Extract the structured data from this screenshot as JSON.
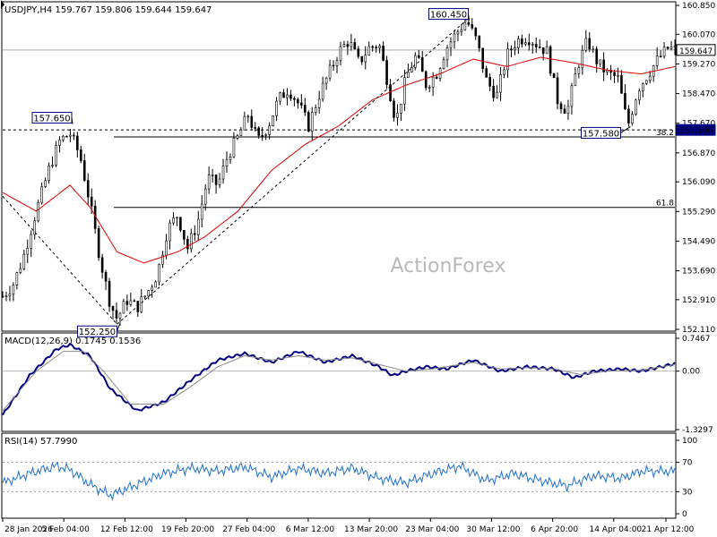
{
  "window": {
    "symbol_line": "USDJPY,H4  159.767 159.806 159.644 159.647"
  },
  "watermark": "ActionForex",
  "colors": {
    "candle": "#000000",
    "ma": "#e00000",
    "macd_main": "#000080",
    "macd_signal": "#8a8a8a",
    "rsi": "#1f6fd0",
    "grid": "#cccccc",
    "label_border": "#000080"
  },
  "chart_data": [
    {
      "type": "candlestick",
      "title": "USDJPY,H4",
      "ylim": [
        152.11,
        160.85
      ],
      "y_ticks": [
        "160.850",
        "160.070",
        "159.270",
        "158.470",
        "157.670",
        "156.870",
        "156.090",
        "155.290",
        "154.490",
        "153.690",
        "152.910",
        "152.110"
      ],
      "x_ticks": [
        "28 Jan 2026",
        "5 Feb 04:00",
        "12 Feb 12:00",
        "19 Feb 20:00",
        "27 Feb 04:00",
        "6 Mar 12:00",
        "13 Mar 20:00",
        "23 Mar 04:00",
        "30 Mar 12:00",
        "6 Apr 20:00",
        "14 Apr 04:00",
        "21 Apr 12:00"
      ],
      "path_points": [
        [
          0,
          153.0
        ],
        [
          0.015,
          153.3
        ],
        [
          0.03,
          154.0
        ],
        [
          0.05,
          155.3
        ],
        [
          0.07,
          156.5
        ],
        [
          0.085,
          157.2
        ],
        [
          0.1,
          157.4
        ],
        [
          0.115,
          156.8
        ],
        [
          0.13,
          155.5
        ],
        [
          0.145,
          154.0
        ],
        [
          0.16,
          152.8
        ],
        [
          0.17,
          152.4
        ],
        [
          0.185,
          152.9
        ],
        [
          0.2,
          152.7
        ],
        [
          0.215,
          153.1
        ],
        [
          0.23,
          153.6
        ],
        [
          0.245,
          154.8
        ],
        [
          0.26,
          155.2
        ],
        [
          0.275,
          154.3
        ],
        [
          0.29,
          155.0
        ],
        [
          0.305,
          156.2
        ],
        [
          0.32,
          156.0
        ],
        [
          0.335,
          156.8
        ],
        [
          0.35,
          157.3
        ],
        [
          0.365,
          157.9
        ],
        [
          0.38,
          157.2
        ],
        [
          0.395,
          157.6
        ],
        [
          0.41,
          158.3
        ],
        [
          0.425,
          158.6
        ],
        [
          0.44,
          158.2
        ],
        [
          0.455,
          157.6
        ],
        [
          0.47,
          158.4
        ],
        [
          0.485,
          159.0
        ],
        [
          0.5,
          159.6
        ],
        [
          0.515,
          159.9
        ],
        [
          0.53,
          159.3
        ],
        [
          0.545,
          159.7
        ],
        [
          0.56,
          159.8
        ],
        [
          0.575,
          158.6
        ],
        [
          0.585,
          157.7
        ],
        [
          0.6,
          158.9
        ],
        [
          0.615,
          159.5
        ],
        [
          0.63,
          158.7
        ],
        [
          0.645,
          159.0
        ],
        [
          0.66,
          159.7
        ],
        [
          0.675,
          160.1
        ],
        [
          0.69,
          160.45
        ],
        [
          0.705,
          159.9
        ],
        [
          0.72,
          158.8
        ],
        [
          0.735,
          158.4
        ],
        [
          0.75,
          159.5
        ],
        [
          0.765,
          159.9
        ],
        [
          0.78,
          160.0
        ],
        [
          0.795,
          159.8
        ],
        [
          0.81,
          159.6
        ],
        [
          0.825,
          158.3
        ],
        [
          0.84,
          158.0
        ],
        [
          0.855,
          159.2
        ],
        [
          0.87,
          159.9
        ],
        [
          0.885,
          159.3
        ],
        [
          0.9,
          159.0
        ],
        [
          0.915,
          158.9
        ],
        [
          0.93,
          157.6
        ],
        [
          0.945,
          158.6
        ],
        [
          0.96,
          159.0
        ],
        [
          0.975,
          159.4
        ],
        [
          0.99,
          159.7
        ],
        [
          1.0,
          159.65
        ]
      ],
      "ma_points": [
        [
          0,
          155.8
        ],
        [
          0.05,
          155.3
        ],
        [
          0.1,
          156.0
        ],
        [
          0.13,
          155.4
        ],
        [
          0.17,
          154.2
        ],
        [
          0.21,
          153.9
        ],
        [
          0.26,
          154.2
        ],
        [
          0.3,
          154.6
        ],
        [
          0.35,
          155.3
        ],
        [
          0.4,
          156.4
        ],
        [
          0.45,
          157.1
        ],
        [
          0.5,
          157.6
        ],
        [
          0.55,
          158.3
        ],
        [
          0.6,
          158.7
        ],
        [
          0.65,
          159.0
        ],
        [
          0.7,
          159.4
        ],
        [
          0.75,
          159.2
        ],
        [
          0.8,
          159.45
        ],
        [
          0.85,
          159.3
        ],
        [
          0.9,
          159.1
        ],
        [
          0.95,
          159.0
        ],
        [
          1.0,
          159.2
        ]
      ],
      "current_price": 159.647,
      "levels": [
        {
          "price": 157.49,
          "label": "157.490",
          "style": "dashed",
          "role": "current support"
        },
        {
          "price": 157.3,
          "label": "38.2",
          "style": "solid"
        },
        {
          "price": 155.4,
          "label": "61.8",
          "style": "solid"
        }
      ],
      "annotations": [
        {
          "label": "160.450",
          "price": 160.45,
          "pos": 0.69
        },
        {
          "label": "157.650",
          "price": 157.65,
          "pos": 0.1
        },
        {
          "label": "152.250",
          "price": 152.25,
          "pos": 0.17
        },
        {
          "label": "157.580",
          "price": 157.58,
          "pos": 0.93
        }
      ],
      "trendlines": [
        {
          "from": [
            0.0,
            155.7
          ],
          "to": [
            0.17,
            152.25
          ],
          "style": "dashed"
        },
        {
          "from": [
            0.17,
            152.25
          ],
          "to": [
            0.69,
            160.45
          ],
          "style": "dashed"
        }
      ]
    },
    {
      "type": "line",
      "title": "MACD(12,26,9) 0.1745 0.1536",
      "ylim": [
        -1.3297,
        0.7467
      ],
      "y_ticks": [
        "0.7467",
        "0.00",
        "-1.3297"
      ],
      "series": [
        {
          "role": "macd",
          "points": [
            [
              0,
              -1.0
            ],
            [
              0.04,
              -0.1
            ],
            [
              0.08,
              0.5
            ],
            [
              0.1,
              0.6
            ],
            [
              0.13,
              0.35
            ],
            [
              0.16,
              -0.4
            ],
            [
              0.2,
              -0.9
            ],
            [
              0.24,
              -0.7
            ],
            [
              0.28,
              -0.2
            ],
            [
              0.32,
              0.25
            ],
            [
              0.36,
              0.4
            ],
            [
              0.4,
              0.2
            ],
            [
              0.44,
              0.45
            ],
            [
              0.48,
              0.2
            ],
            [
              0.52,
              0.35
            ],
            [
              0.56,
              0.1
            ],
            [
              0.58,
              -0.1
            ],
            [
              0.6,
              0.0
            ],
            [
              0.63,
              0.1
            ],
            [
              0.66,
              0.05
            ],
            [
              0.7,
              0.25
            ],
            [
              0.74,
              0.0
            ],
            [
              0.78,
              0.1
            ],
            [
              0.82,
              0.05
            ],
            [
              0.85,
              -0.15
            ],
            [
              0.88,
              0.0
            ],
            [
              0.92,
              0.05
            ],
            [
              0.95,
              0.0
            ],
            [
              1.0,
              0.17
            ]
          ]
        },
        {
          "role": "signal",
          "points": [
            [
              0,
              -0.9
            ],
            [
              0.05,
              0.0
            ],
            [
              0.09,
              0.45
            ],
            [
              0.12,
              0.45
            ],
            [
              0.15,
              0.0
            ],
            [
              0.19,
              -0.75
            ],
            [
              0.24,
              -0.75
            ],
            [
              0.28,
              -0.35
            ],
            [
              0.32,
              0.1
            ],
            [
              0.36,
              0.35
            ],
            [
              0.4,
              0.25
            ],
            [
              0.44,
              0.35
            ],
            [
              0.48,
              0.25
            ],
            [
              0.52,
              0.3
            ],
            [
              0.56,
              0.15
            ],
            [
              0.6,
              0.0
            ],
            [
              0.64,
              0.05
            ],
            [
              0.7,
              0.2
            ],
            [
              0.74,
              0.05
            ],
            [
              0.78,
              0.08
            ],
            [
              0.82,
              0.05
            ],
            [
              0.86,
              -0.08
            ],
            [
              0.9,
              0.0
            ],
            [
              0.95,
              0.02
            ],
            [
              1.0,
              0.15
            ]
          ]
        }
      ]
    },
    {
      "type": "line",
      "title": "RSI(14) 57.7990",
      "ylim": [
        0,
        100
      ],
      "y_ticks": [
        "100",
        "70",
        "30",
        "0"
      ],
      "levels": [
        70,
        30
      ],
      "series": [
        {
          "role": "rsi",
          "points": [
            [
              0,
              42
            ],
            [
              0.04,
              55
            ],
            [
              0.08,
              65
            ],
            [
              0.1,
              60
            ],
            [
              0.13,
              40
            ],
            [
              0.16,
              25
            ],
            [
              0.2,
              40
            ],
            [
              0.24,
              55
            ],
            [
              0.28,
              62
            ],
            [
              0.32,
              58
            ],
            [
              0.36,
              64
            ],
            [
              0.4,
              50
            ],
            [
              0.44,
              62
            ],
            [
              0.48,
              55
            ],
            [
              0.52,
              62
            ],
            [
              0.56,
              48
            ],
            [
              0.6,
              42
            ],
            [
              0.64,
              55
            ],
            [
              0.68,
              65
            ],
            [
              0.72,
              45
            ],
            [
              0.76,
              55
            ],
            [
              0.8,
              45
            ],
            [
              0.84,
              38
            ],
            [
              0.88,
              52
            ],
            [
              0.92,
              48
            ],
            [
              0.95,
              58
            ],
            [
              1.0,
              57.8
            ]
          ]
        }
      ]
    }
  ]
}
